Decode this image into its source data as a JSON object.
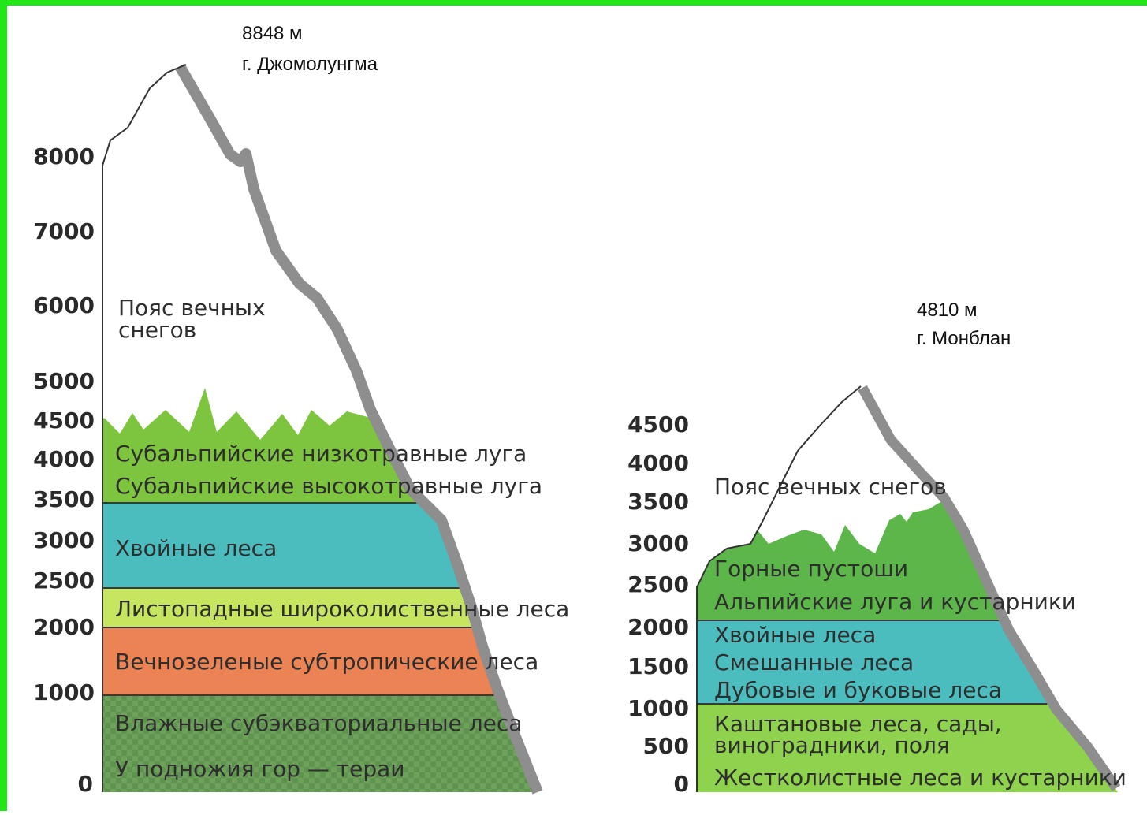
{
  "colors": {
    "frame": "#22e61a",
    "snow": "#ffffff",
    "subalpine": "#7dc43f",
    "conifer": "#4bbdbf",
    "deciduous": "#c7e660",
    "subtropical": "#ec8354",
    "subequatorial": "#6ea25a",
    "rock": "#8e8e8e",
    "alpine": "#5cb64a",
    "chestnut": "#8ed24e"
  },
  "everest": {
    "peak_height": "8848 м",
    "peak_name": "г. Джомолунгма",
    "ticks": [
      "8000",
      "7000",
      "6000",
      "5000",
      "4500",
      "4000",
      "3500",
      "3000",
      "2500",
      "2000",
      "1000",
      "0"
    ],
    "zones": {
      "snow": "Пояс вечных",
      "snow_line2": "снегов",
      "subalpine_low": "Субальпийские низкотравные луга",
      "subalpine_high": "Субальпийские высокотравные луга",
      "conifer": "Хвойные леса",
      "deciduous": "Листопадные широколиственные леса",
      "subtropical": "Вечнозеленые субтропические леса",
      "subequatorial": "Влажные субэкваториальные леса",
      "terai": "У подножия гор — тераи"
    }
  },
  "montblanc": {
    "peak_height": "4810 м",
    "peak_name": "г. Монблан",
    "ticks": [
      "4500",
      "4000",
      "3500",
      "3000",
      "2500",
      "2000",
      "1500",
      "1000",
      "500",
      "0"
    ],
    "zones": {
      "snow": "Пояс вечных снегов",
      "heath": "Горные пустоши",
      "alpine": "Альпийские луга и кустарники",
      "conifer": "Хвойные леса",
      "mixed": "Смешанные леса",
      "oak": "Дубовые и буковые леса",
      "chestnut": "Каштановые леса, сады,",
      "chestnut_line2": "виноградники, поля",
      "sclerophyll": "Жестколистные леса и кустарники"
    }
  }
}
